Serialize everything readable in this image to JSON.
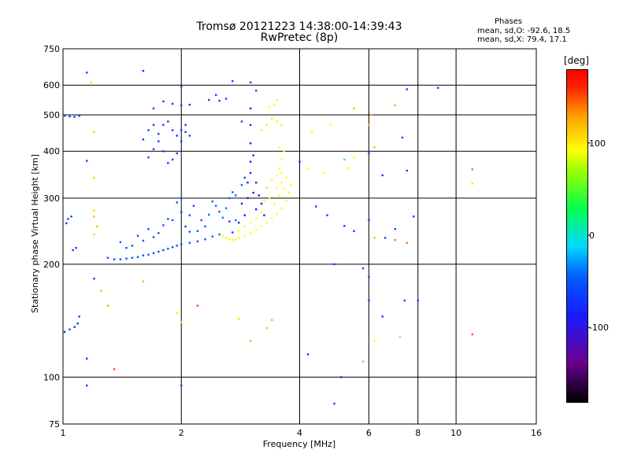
{
  "header": {
    "title": "Tromsø 20121223 14:38:00-14:39:43",
    "subtitle": "RwPretec (8p)",
    "phases_label": "Phases",
    "stats_o": "mean, sd,O: -92.6, 18.5",
    "stats_x": "mean, sd,X:  79.4, 17.1"
  },
  "colorbar": {
    "unit": "[deg]",
    "range": [
      -180,
      180
    ],
    "ticks": [
      "100",
      "0",
      "-100"
    ],
    "tick_values": [
      100,
      0,
      -100
    ]
  },
  "chart_data": {
    "type": "scatter",
    "xlabel": "Frequency [MHz]",
    "ylabel": "Stationary phase Virtual Height [km]",
    "xscale": "log",
    "yscale": "log",
    "xlim": [
      1,
      16
    ],
    "ylim": [
      75,
      750
    ],
    "xticks": [
      1,
      2,
      4,
      6,
      8,
      10,
      16
    ],
    "xtick_labels": [
      "1",
      "2",
      "4",
      "6",
      "8",
      "10",
      "16"
    ],
    "yticks": [
      75,
      100,
      200,
      300,
      400,
      500,
      600,
      750
    ],
    "ytick_labels": [
      "75",
      "100",
      "200",
      "300",
      "400",
      "500",
      "600",
      "750"
    ],
    "grid": true,
    "point_color": "phase (colorbar)",
    "series": [
      {
        "values": [
          [
            1.02,
            257,
            -100
          ],
          [
            1.03,
            264,
            -100
          ],
          [
            1.05,
            268,
            -100
          ],
          [
            1.06,
            218,
            -100
          ],
          [
            1.08,
            221,
            -100
          ],
          [
            1.01,
            132,
            -100
          ],
          [
            1.04,
            134,
            -100
          ],
          [
            1.07,
            136,
            -100
          ],
          [
            1.09,
            139,
            -100
          ],
          [
            1.01,
            497,
            -100
          ],
          [
            1.04,
            495,
            -100
          ],
          [
            1.07,
            494,
            -100
          ],
          [
            1.1,
            497,
            -100
          ],
          [
            1.15,
            648,
            -100
          ],
          [
            1.6,
            655,
            -105
          ],
          [
            1.15,
            377,
            -100
          ],
          [
            1.2,
            183,
            -100
          ],
          [
            1.15,
            112,
            -100
          ],
          [
            1.15,
            95,
            -100
          ],
          [
            1.3,
            208,
            -95
          ],
          [
            1.35,
            206,
            -95
          ],
          [
            1.4,
            206,
            -95
          ],
          [
            1.45,
            207,
            -95
          ],
          [
            1.5,
            208,
            -95
          ],
          [
            1.55,
            209,
            -95
          ],
          [
            1.6,
            211,
            -95
          ],
          [
            1.65,
            212,
            -95
          ],
          [
            1.7,
            214,
            -95
          ],
          [
            1.75,
            216,
            -95
          ],
          [
            1.8,
            218,
            -95
          ],
          [
            1.85,
            220,
            -95
          ],
          [
            1.9,
            222,
            -95
          ],
          [
            1.95,
            224,
            -95
          ],
          [
            2.0,
            226,
            -95
          ],
          [
            2.1,
            228,
            -95
          ],
          [
            2.2,
            230,
            -95
          ],
          [
            2.3,
            233,
            -95
          ],
          [
            2.4,
            237,
            -90
          ],
          [
            2.5,
            240,
            -90
          ],
          [
            1.9,
            262,
            -95
          ],
          [
            2.0,
            275,
            -95
          ],
          [
            2.05,
            252,
            -95
          ],
          [
            2.1,
            244,
            -95
          ],
          [
            2.15,
            286,
            -95
          ],
          [
            1.8,
            254,
            -95
          ],
          [
            1.75,
            242,
            -95
          ],
          [
            1.7,
            236,
            -95
          ],
          [
            1.65,
            248,
            -95
          ],
          [
            1.6,
            231,
            -95
          ],
          [
            1.55,
            238,
            -95
          ],
          [
            1.5,
            224,
            -95
          ],
          [
            1.45,
            221,
            -95
          ],
          [
            1.4,
            229,
            -95
          ],
          [
            1.85,
            264,
            -95
          ],
          [
            2.25,
            262,
            -90
          ],
          [
            2.3,
            252,
            -90
          ],
          [
            2.35,
            271,
            -90
          ],
          [
            2.4,
            294,
            -90
          ],
          [
            2.45,
            286,
            -90
          ],
          [
            2.5,
            276,
            -90
          ],
          [
            2.55,
            266,
            -85
          ],
          [
            2.6,
            282,
            -85
          ],
          [
            2.65,
            300,
            -85
          ],
          [
            2.7,
            311,
            -85
          ],
          [
            2.75,
            262,
            -85
          ],
          [
            1.95,
            292,
            -95
          ],
          [
            2.0,
            300,
            -95
          ],
          [
            2.1,
            270,
            -95
          ],
          [
            2.2,
            245,
            -95
          ],
          [
            1.65,
            385,
            -100
          ],
          [
            1.7,
            405,
            -100
          ],
          [
            1.75,
            425,
            -100
          ],
          [
            1.8,
            470,
            -100
          ],
          [
            1.85,
            480,
            -100
          ],
          [
            1.9,
            455,
            -100
          ],
          [
            1.95,
            440,
            -100
          ],
          [
            2.0,
            455,
            -100
          ],
          [
            2.05,
            470,
            -100
          ],
          [
            2.1,
            440,
            -100
          ],
          [
            1.6,
            430,
            -100
          ],
          [
            1.65,
            455,
            -100
          ],
          [
            1.7,
            470,
            -100
          ],
          [
            1.75,
            445,
            -100
          ],
          [
            1.8,
            400,
            -100
          ],
          [
            1.85,
            372,
            -100
          ],
          [
            1.9,
            380,
            -100
          ],
          [
            1.95,
            395,
            -100
          ],
          [
            2.0,
            425,
            -100
          ],
          [
            2.05,
            450,
            -100
          ],
          [
            1.7,
            520,
            -100
          ],
          [
            1.8,
            543,
            -100
          ],
          [
            1.9,
            535,
            -100
          ],
          [
            2.0,
            530,
            -100
          ],
          [
            2.1,
            532,
            -100
          ],
          [
            2.0,
            595,
            -100
          ],
          [
            2.35,
            548,
            -100
          ],
          [
            2.45,
            565,
            -100
          ],
          [
            2.5,
            545,
            -100
          ],
          [
            2.6,
            552,
            -100
          ],
          [
            2.7,
            615,
            -100
          ],
          [
            2.85,
            480,
            -100
          ],
          [
            2.9,
            340,
            -100
          ],
          [
            2.95,
            300,
            -110
          ],
          [
            3.0,
            375,
            -110
          ],
          [
            3.0,
            420,
            -110
          ],
          [
            3.0,
            470,
            -110
          ],
          [
            3.0,
            520,
            -110
          ],
          [
            2.95,
            330,
            -110
          ],
          [
            3.0,
            350,
            -110
          ],
          [
            3.05,
            310,
            -110
          ],
          [
            3.05,
            390,
            -115
          ],
          [
            3.1,
            330,
            -115
          ],
          [
            3.1,
            280,
            -115
          ],
          [
            3.15,
            305,
            -115
          ],
          [
            3.2,
            290,
            -120
          ],
          [
            3.25,
            270,
            -120
          ],
          [
            3.3,
            320,
            -120
          ],
          [
            2.85,
            290,
            -110
          ],
          [
            2.9,
            270,
            -110
          ],
          [
            2.8,
            258,
            -110
          ],
          [
            2.75,
            305,
            -90
          ],
          [
            2.85,
            325,
            -90
          ],
          [
            2.7,
            243,
            -100
          ],
          [
            2.65,
            260,
            -100
          ],
          [
            3.0,
            610,
            -100
          ],
          [
            3.1,
            580,
            -100
          ],
          [
            2.55,
            238,
            80
          ],
          [
            2.6,
            235,
            80
          ],
          [
            2.65,
            233,
            80
          ],
          [
            2.7,
            232,
            80
          ],
          [
            2.75,
            233,
            80
          ],
          [
            2.8,
            235,
            80
          ],
          [
            2.9,
            238,
            80
          ],
          [
            3.0,
            242,
            80
          ],
          [
            3.1,
            247,
            80
          ],
          [
            3.2,
            252,
            80
          ],
          [
            3.3,
            258,
            80
          ],
          [
            3.4,
            265,
            80
          ],
          [
            3.5,
            272,
            80
          ],
          [
            3.6,
            282,
            80
          ],
          [
            3.7,
            295,
            80
          ],
          [
            3.75,
            310,
            80
          ],
          [
            3.8,
            325,
            80
          ],
          [
            3.7,
            340,
            80
          ],
          [
            3.6,
            350,
            80
          ],
          [
            3.5,
            345,
            80
          ],
          [
            3.4,
            335,
            80
          ],
          [
            3.3,
            320,
            80
          ],
          [
            3.35,
            300,
            80
          ],
          [
            3.45,
            290,
            80
          ],
          [
            3.55,
            305,
            80
          ],
          [
            3.65,
            318,
            80
          ],
          [
            3.2,
            275,
            80
          ],
          [
            3.1,
            265,
            80
          ],
          [
            3.0,
            258,
            80
          ],
          [
            2.9,
            252,
            80
          ],
          [
            2.8,
            245,
            80
          ],
          [
            3.25,
            295,
            80
          ],
          [
            3.5,
            320,
            80
          ],
          [
            3.6,
            330,
            80
          ],
          [
            3.55,
            360,
            80
          ],
          [
            3.6,
            380,
            80
          ],
          [
            3.65,
            400,
            80
          ],
          [
            3.55,
            410,
            80
          ],
          [
            3.2,
            455,
            90
          ],
          [
            3.3,
            470,
            90
          ],
          [
            3.4,
            488,
            90
          ],
          [
            3.5,
            480,
            90
          ],
          [
            3.6,
            470,
            90
          ],
          [
            3.35,
            525,
            80
          ],
          [
            3.45,
            532,
            80
          ],
          [
            3.5,
            548,
            80
          ],
          [
            4.8,
            470,
            80
          ],
          [
            4.2,
            360,
            80
          ],
          [
            4.6,
            350,
            80
          ],
          [
            5.3,
            360,
            80
          ],
          [
            5.5,
            520,
            120
          ],
          [
            6.1,
            500,
            120
          ],
          [
            7.0,
            530,
            120
          ],
          [
            6.0,
            470,
            120
          ],
          [
            6.2,
            410,
            120
          ],
          [
            5.2,
            380,
            0
          ],
          [
            5.5,
            385,
            80
          ],
          [
            6.0,
            395,
            -100
          ],
          [
            6.5,
            345,
            -100
          ],
          [
            7.5,
            355,
            -100
          ],
          [
            4.3,
            450,
            80
          ],
          [
            4.0,
            375,
            -100
          ],
          [
            4.4,
            285,
            -100
          ],
          [
            4.7,
            270,
            -100
          ],
          [
            5.2,
            253,
            -100
          ],
          [
            5.5,
            245,
            -100
          ],
          [
            6.0,
            262,
            -100
          ],
          [
            6.2,
            235,
            120
          ],
          [
            6.6,
            235,
            -100
          ],
          [
            7.0,
            248,
            -100
          ],
          [
            7.5,
            228,
            140
          ],
          [
            7.8,
            268,
            -100
          ],
          [
            4.9,
            200,
            -100
          ],
          [
            5.8,
            195,
            -100
          ],
          [
            6.0,
            185,
            -100
          ],
          [
            6.5,
            145,
            -100
          ],
          [
            7.4,
            160,
            -100
          ],
          [
            8.0,
            160,
            -100
          ],
          [
            7.5,
            585,
            -100
          ],
          [
            9.0,
            590,
            -100
          ],
          [
            7.3,
            435,
            -100
          ],
          [
            7.0,
            232,
            140
          ],
          [
            11.0,
            358,
            140
          ],
          [
            11.0,
            328,
            100
          ],
          [
            11.0,
            130,
            150
          ],
          [
            1.2,
            278,
            100
          ],
          [
            1.2,
            268,
            110
          ],
          [
            1.22,
            252,
            120
          ],
          [
            1.2,
            240,
            100
          ],
          [
            1.2,
            450,
            100
          ],
          [
            1.2,
            340,
            100
          ],
          [
            1.18,
            610,
            100
          ],
          [
            1.25,
            170,
            110
          ],
          [
            1.3,
            155,
            120
          ],
          [
            1.35,
            105,
            150
          ],
          [
            1.6,
            180,
            120
          ],
          [
            1.95,
            148,
            60
          ],
          [
            2.0,
            140,
            90
          ],
          [
            2.2,
            155,
            150
          ],
          [
            2.8,
            143,
            100
          ],
          [
            3.0,
            125,
            120
          ],
          [
            3.3,
            135,
            110
          ],
          [
            3.4,
            142,
            120
          ],
          [
            1.1,
            145,
            -100
          ],
          [
            4.2,
            115,
            -100
          ],
          [
            5.1,
            100,
            -100
          ],
          [
            4.9,
            85,
            -100
          ],
          [
            2.0,
            95,
            -100
          ],
          [
            5.8,
            110,
            20
          ],
          [
            6.2,
            125,
            80
          ],
          [
            7.2,
            128,
            110
          ],
          [
            6.0,
            160,
            -100
          ]
        ]
      }
    ]
  }
}
